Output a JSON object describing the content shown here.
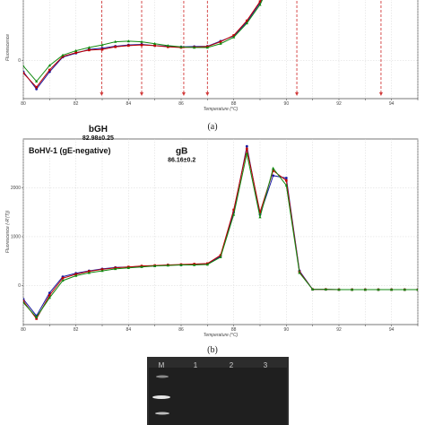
{
  "captions": {
    "a": "(a)",
    "b": "(b)"
  },
  "gel": {
    "lane_labels": [
      "M",
      "1",
      "2",
      "3"
    ]
  },
  "chart_data": [
    {
      "type": "line",
      "xlabel": "Temperature (°C)",
      "ylabel": "Fluorescence",
      "xlim": [
        80,
        95
      ],
      "ylim": [
        -600,
        1000
      ],
      "x_ticks": [
        80,
        81,
        82,
        83,
        84,
        85,
        86,
        87,
        88,
        89,
        90,
        91,
        92,
        93,
        94,
        95
      ],
      "x_tick_labels": [
        "80",
        "",
        "82",
        "",
        "84",
        "",
        "86",
        "",
        "88",
        "",
        "90",
        "",
        "92",
        "",
        "94",
        ""
      ],
      "y_ticks": [
        0
      ],
      "y_tick_labels": [
        "0"
      ],
      "grid": true,
      "x": [
        80,
        80.5,
        81,
        81.5,
        82,
        82.5,
        83,
        83.5,
        84,
        84.5,
        85,
        85.5,
        86,
        86.5,
        87,
        87.5,
        88,
        88.5,
        89,
        89.5,
        90,
        90.5,
        91,
        91.5,
        92,
        92.5,
        93,
        93.5,
        94,
        94.5,
        95
      ],
      "series": [
        {
          "color": "#1a1aa0",
          "values": [
            -180,
            -450,
            -180,
            50,
            110,
            170,
            190,
            220,
            240,
            250,
            230,
            220,
            210,
            215,
            220,
            300,
            380,
            600,
            900,
            1300,
            null,
            null,
            null,
            null,
            null,
            null,
            null,
            null,
            null,
            null,
            null
          ]
        },
        {
          "color": "#c00000",
          "values": [
            -200,
            -420,
            -150,
            60,
            120,
            160,
            170,
            210,
            230,
            240,
            230,
            210,
            200,
            205,
            215,
            290,
            390,
            620,
            920,
            1300,
            null,
            null,
            null,
            null,
            null,
            null,
            null,
            null,
            null,
            null,
            null
          ]
        },
        {
          "color": "#108a10",
          "values": [
            -90,
            -330,
            -80,
            80,
            150,
            200,
            240,
            290,
            300,
            290,
            260,
            230,
            210,
            200,
            200,
            260,
            360,
            580,
            870,
            1300,
            null,
            null,
            null,
            null,
            null,
            null,
            null,
            null,
            null,
            null,
            null
          ]
        }
      ],
      "markers": [
        82.98,
        84.5,
        86.1,
        87.0,
        90.4,
        93.6
      ]
    },
    {
      "type": "line",
      "title": "BoHV-1 (gE-negative)",
      "xlabel": "Temperature (°C)",
      "ylabel": "Fluorescence (-R'(T))",
      "xlim": [
        80,
        95
      ],
      "ylim": [
        -800,
        3000
      ],
      "x_ticks": [
        80,
        81,
        82,
        83,
        84,
        85,
        86,
        87,
        88,
        89,
        90,
        91,
        92,
        93,
        94,
        95
      ],
      "x_tick_labels": [
        "80",
        "",
        "82",
        "",
        "84",
        "",
        "86",
        "",
        "88",
        "",
        "90",
        "",
        "92",
        "",
        "94",
        ""
      ],
      "y_ticks": [
        0,
        1000,
        2000
      ],
      "y_tick_labels": [
        "0",
        "1000",
        "2000"
      ],
      "grid": true,
      "x": [
        80,
        80.5,
        81,
        81.5,
        82,
        82.5,
        83,
        83.5,
        84,
        84.5,
        85,
        85.5,
        86,
        86.5,
        87,
        87.5,
        88,
        88.5,
        89,
        89.5,
        90,
        90.5,
        91,
        91.5,
        92,
        92.5,
        93,
        93.5,
        94,
        94.5,
        95
      ],
      "annotations": [
        {
          "name": "bGH",
          "value": "82.98±0.25",
          "x": 82.98,
          "y": 2850
        },
        {
          "name": "gB",
          "value": "86.16±0.2",
          "x": 86.16,
          "y": 2400
        }
      ],
      "series": [
        {
          "color": "#1a1aa0",
          "values": [
            -280,
            -620,
            -150,
            180,
            250,
            300,
            340,
            370,
            380,
            390,
            400,
            420,
            420,
            430,
            440,
            600,
            1500,
            2850,
            1450,
            2250,
            2200,
            300,
            -80,
            -80,
            -85,
            -85,
            -85,
            -85,
            -85,
            -85,
            -85
          ]
        },
        {
          "color": "#c00000",
          "values": [
            -320,
            -680,
            -200,
            150,
            230,
            290,
            330,
            360,
            380,
            400,
            410,
            420,
            430,
            440,
            450,
            620,
            1550,
            2800,
            1500,
            2350,
            2150,
            280,
            -80,
            -80,
            -85,
            -85,
            -85,
            -85,
            -85,
            -85,
            -85
          ]
        },
        {
          "color": "#108a10",
          "values": [
            -350,
            -650,
            -250,
            100,
            200,
            260,
            300,
            340,
            360,
            380,
            400,
            410,
            420,
            420,
            430,
            580,
            1450,
            2700,
            1400,
            2400,
            2050,
            260,
            -80,
            -80,
            -85,
            -85,
            -85,
            -85,
            -85,
            -85,
            -85
          ]
        }
      ]
    }
  ]
}
